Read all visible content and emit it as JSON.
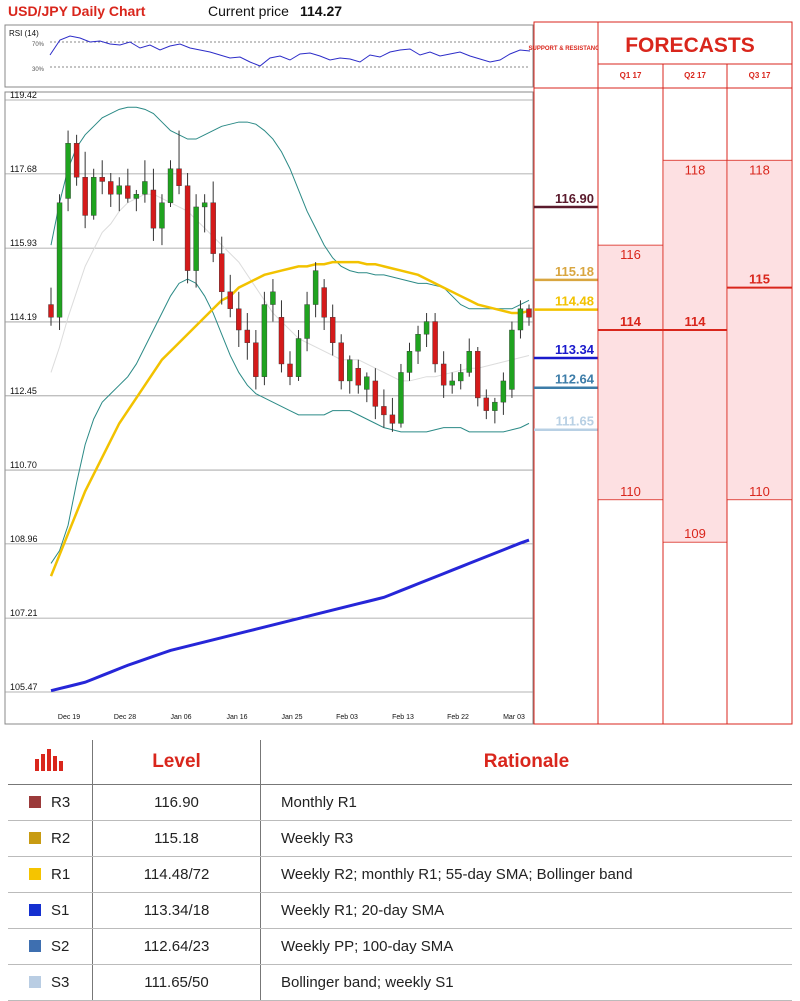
{
  "header": {
    "title": "USD/JPY Daily Chart",
    "price_label": "Current price",
    "price_value": "114.27"
  },
  "rsi": {
    "label": "RSI (14)",
    "upper": "70%",
    "lower": "30%"
  },
  "support_resistance_header": "SUPPORT & RESISTANCE",
  "forecasts": {
    "title": "FORECASTS",
    "quarters": [
      {
        "label": "Q1 17",
        "high": 116,
        "mid": 114,
        "low": 110
      },
      {
        "label": "Q2 17",
        "high": 118,
        "mid": 114,
        "low": 109
      },
      {
        "label": "Q3 17",
        "high": 118,
        "mid": 115,
        "low": 110
      }
    ]
  },
  "sr_levels": [
    {
      "value": "116.90",
      "color": "#5a1a2c"
    },
    {
      "value": "115.18",
      "color": "#d9a640"
    },
    {
      "value": "114.48",
      "color": "#f2c200"
    },
    {
      "value": "113.34",
      "color": "#1a1acc"
    },
    {
      "value": "112.64",
      "color": "#3c7ca8"
    },
    {
      "value": "111.65",
      "color": "#b8d0e4"
    }
  ],
  "chart_data": {
    "type": "candlestick",
    "title": "USD/JPY Daily Chart",
    "y_ticks": [
      "119.42",
      "117.68",
      "115.93",
      "114.19",
      "112.45",
      "110.70",
      "108.96",
      "107.21",
      "105.47"
    ],
    "x_ticks": [
      "Dec 19",
      "Dec 28",
      "Jan 06",
      "Jan 16",
      "Jan 25",
      "Feb 03",
      "Feb 13",
      "Feb 22",
      "Mar 03"
    ],
    "ylim": [
      105.47,
      119.42
    ],
    "candles": [
      [
        114.6,
        115.0,
        114.1,
        114.3
      ],
      [
        114.3,
        117.2,
        114.0,
        117.0
      ],
      [
        117.1,
        118.7,
        116.8,
        118.4
      ],
      [
        118.4,
        118.6,
        117.4,
        117.6
      ],
      [
        117.6,
        118.2,
        116.4,
        116.7
      ],
      [
        116.7,
        117.8,
        116.6,
        117.6
      ],
      [
        117.6,
        118.0,
        117.2,
        117.5
      ],
      [
        117.5,
        117.7,
        116.9,
        117.2
      ],
      [
        117.2,
        117.6,
        116.8,
        117.4
      ],
      [
        117.4,
        117.8,
        117.0,
        117.1
      ],
      [
        117.1,
        117.3,
        116.8,
        117.2
      ],
      [
        117.2,
        118.0,
        117.0,
        117.5
      ],
      [
        117.3,
        117.8,
        116.1,
        116.4
      ],
      [
        116.4,
        117.2,
        116.0,
        117.0
      ],
      [
        117.0,
        118.0,
        116.9,
        117.8
      ],
      [
        117.8,
        118.7,
        117.2,
        117.4
      ],
      [
        117.4,
        117.7,
        115.1,
        115.4
      ],
      [
        115.4,
        117.2,
        115.0,
        116.9
      ],
      [
        116.9,
        117.2,
        116.3,
        117.0
      ],
      [
        117.0,
        117.5,
        115.6,
        115.8
      ],
      [
        115.8,
        116.2,
        114.6,
        114.9
      ],
      [
        114.9,
        115.3,
        114.3,
        114.5
      ],
      [
        114.5,
        114.9,
        113.6,
        114.0
      ],
      [
        114.0,
        114.4,
        113.3,
        113.7
      ],
      [
        113.7,
        114.0,
        112.6,
        112.9
      ],
      [
        112.9,
        114.9,
        112.7,
        114.6
      ],
      [
        114.6,
        115.2,
        114.2,
        114.9
      ],
      [
        114.3,
        114.7,
        113.0,
        113.2
      ],
      [
        113.2,
        113.5,
        112.7,
        112.9
      ],
      [
        112.9,
        114.0,
        112.8,
        113.8
      ],
      [
        113.8,
        114.9,
        113.5,
        114.6
      ],
      [
        114.6,
        115.6,
        114.3,
        115.4
      ],
      [
        115.0,
        115.2,
        114.0,
        114.3
      ],
      [
        114.3,
        114.6,
        113.4,
        113.7
      ],
      [
        113.7,
        113.9,
        112.6,
        112.8
      ],
      [
        112.8,
        113.4,
        112.5,
        113.3
      ],
      [
        113.1,
        113.3,
        112.5,
        112.7
      ],
      [
        112.6,
        113.0,
        112.3,
        112.9
      ],
      [
        112.8,
        113.1,
        111.9,
        112.2
      ],
      [
        112.2,
        112.6,
        111.7,
        112.0
      ],
      [
        112.0,
        112.4,
        111.6,
        111.8
      ],
      [
        111.8,
        113.2,
        111.7,
        113.0
      ],
      [
        113.0,
        113.7,
        112.8,
        113.5
      ],
      [
        113.5,
        114.1,
        113.2,
        113.9
      ],
      [
        113.9,
        114.4,
        113.6,
        114.2
      ],
      [
        114.2,
        114.4,
        113.0,
        113.2
      ],
      [
        113.2,
        113.5,
        112.4,
        112.7
      ],
      [
        112.7,
        113.0,
        112.5,
        112.8
      ],
      [
        112.8,
        113.2,
        112.6,
        113.0
      ],
      [
        113.0,
        113.8,
        112.9,
        113.5
      ],
      [
        113.5,
        113.6,
        112.2,
        112.4
      ],
      [
        112.4,
        112.6,
        111.9,
        112.1
      ],
      [
        112.1,
        112.4,
        111.8,
        112.3
      ],
      [
        112.3,
        113.0,
        112.0,
        112.8
      ],
      [
        112.6,
        114.2,
        112.4,
        114.0
      ],
      [
        114.0,
        114.7,
        113.8,
        114.5
      ],
      [
        114.5,
        114.6,
        114.1,
        114.3
      ]
    ],
    "sma55": [
      108.2,
      108.7,
      109.2,
      109.7,
      110.2,
      110.6,
      111.0,
      111.4,
      111.8,
      112.1,
      112.4,
      112.7,
      113.0,
      113.3,
      113.5,
      113.7,
      113.9,
      114.1,
      114.3,
      114.5,
      114.7,
      114.8,
      115.0,
      115.1,
      115.2,
      115.3,
      115.35,
      115.4,
      115.45,
      115.5,
      115.5,
      115.55,
      115.55,
      115.6,
      115.6,
      115.6,
      115.6,
      115.55,
      115.55,
      115.5,
      115.45,
      115.4,
      115.35,
      115.3,
      115.2,
      115.1,
      115.0,
      114.9,
      114.8,
      114.7,
      114.6,
      114.55,
      114.5,
      114.45,
      114.4,
      114.4,
      114.45
    ],
    "sma_long": [
      105.5,
      105.55,
      105.6,
      105.65,
      105.7,
      105.78,
      105.86,
      105.94,
      106.02,
      106.1,
      106.17,
      106.24,
      106.31,
      106.38,
      106.45,
      106.5,
      106.55,
      106.6,
      106.65,
      106.7,
      106.75,
      106.8,
      106.85,
      106.9,
      106.95,
      107.0,
      107.05,
      107.1,
      107.15,
      107.2,
      107.25,
      107.3,
      107.35,
      107.4,
      107.45,
      107.5,
      107.55,
      107.6,
      107.65,
      107.7,
      107.78,
      107.86,
      107.94,
      108.02,
      108.1,
      108.18,
      108.26,
      108.34,
      108.42,
      108.5,
      108.58,
      108.66,
      108.74,
      108.82,
      108.9,
      108.98,
      109.05
    ],
    "boll_upper": [
      116.0,
      117.0,
      117.8,
      118.3,
      118.6,
      118.8,
      119.0,
      119.1,
      119.2,
      119.25,
      119.25,
      119.2,
      119.1,
      118.9,
      118.7,
      118.6,
      118.5,
      118.5,
      118.6,
      118.7,
      118.8,
      118.85,
      118.9,
      118.9,
      118.85,
      118.7,
      118.5,
      118.2,
      117.8,
      117.3,
      116.8,
      116.4,
      116.0,
      115.7,
      115.5,
      115.4,
      115.35,
      115.35,
      115.3,
      115.3,
      115.25,
      115.2,
      115.15,
      115.1,
      115.1,
      115.05,
      115.0,
      114.8,
      114.6,
      114.5,
      114.5,
      114.5,
      114.5,
      114.5,
      114.5,
      114.6,
      114.7
    ],
    "boll_lower": [
      108.5,
      108.8,
      109.4,
      110.4,
      111.3,
      111.9,
      112.3,
      112.5,
      112.7,
      112.9,
      113.2,
      113.6,
      114.0,
      114.4,
      114.8,
      115.1,
      115.2,
      115.1,
      114.8,
      114.4,
      113.9,
      113.4,
      113.0,
      112.7,
      112.5,
      112.4,
      112.3,
      112.2,
      112.1,
      112.0,
      112.0,
      112.0,
      112.0,
      112.1,
      112.1,
      112.1,
      112.0,
      111.9,
      111.8,
      111.7,
      111.65,
      111.6,
      111.6,
      111.6,
      111.6,
      111.65,
      111.7,
      111.7,
      111.7,
      111.6,
      111.6,
      111.6,
      111.6,
      111.6,
      111.65,
      111.7,
      111.8
    ],
    "boll_mid": [
      113.0,
      113.6,
      114.3,
      114.9,
      115.5,
      115.9,
      116.3,
      116.5,
      116.8,
      117.0,
      117.1,
      117.2,
      117.2,
      117.1,
      117.0,
      116.9,
      116.8,
      116.6,
      116.4,
      116.2,
      116.0,
      115.8,
      115.6,
      115.3,
      115.0,
      114.7,
      114.4,
      114.2,
      114.0,
      113.8,
      113.7,
      113.6,
      113.5,
      113.4,
      113.3,
      113.3,
      113.3,
      113.2,
      113.1,
      113.0,
      112.9,
      112.8,
      112.8,
      112.85,
      112.9,
      112.9,
      112.95,
      113.0,
      113.05,
      113.1,
      113.1,
      113.15,
      113.2,
      113.25,
      113.3,
      113.35,
      113.4
    ]
  },
  "table": {
    "headers": {
      "level": "Level",
      "rationale": "Rationale"
    },
    "rows": [
      {
        "tag": "R3",
        "level": "116.90",
        "rationale": "Monthly R1",
        "color": "#9b3a3a"
      },
      {
        "tag": "R2",
        "level": "115.18",
        "rationale": "Weekly R3",
        "color": "#c89b12"
      },
      {
        "tag": "R1",
        "level": "114.48/72",
        "rationale": "Weekly R2; monthly R1; 55-day SMA; Bollinger band",
        "color": "#f5c400"
      },
      {
        "tag": "S1",
        "level": "113.34/18",
        "rationale": "Weekly R1; 20-day SMA",
        "color": "#1530d0"
      },
      {
        "tag": "S2",
        "level": "112.64/23",
        "rationale": "Weekly PP; 100-day SMA",
        "color": "#3e6fb0"
      },
      {
        "tag": "S3",
        "level": "111.65/50",
        "rationale": "Bollinger band; weekly S1",
        "color": "#b9cde3"
      }
    ]
  }
}
